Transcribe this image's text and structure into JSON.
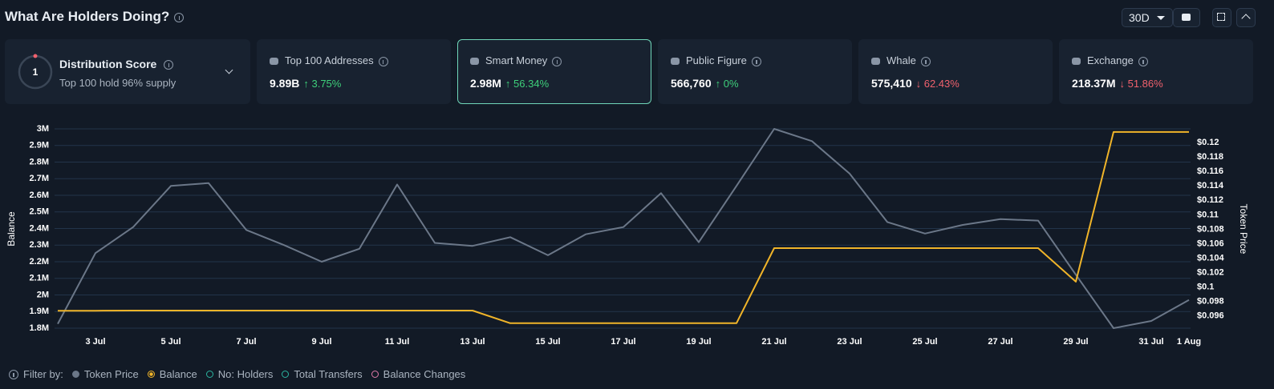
{
  "header": {
    "title": "What Are Holders Doing?",
    "range": "30D"
  },
  "distribution": {
    "title": "Distribution Score",
    "score": "1",
    "subtitle": "Top 100 hold 96% supply"
  },
  "cards": [
    {
      "title": "Top 100 Addresses",
      "value": "9.89B",
      "change": "↑ 3.75%",
      "color": "#3ecf7a"
    },
    {
      "title": "Smart Money",
      "value": "2.98M",
      "change": "↑ 56.34%",
      "color": "#3ecf7a",
      "active": true
    },
    {
      "title": "Public Figure",
      "value": "566,760",
      "change": "↑ 0%",
      "color": "#3ecf7a"
    },
    {
      "title": "Whale",
      "value": "575,410",
      "change": "↓ 62.43%",
      "color": "#f0616d"
    },
    {
      "title": "Exchange",
      "value": "218.37M",
      "change": "↓ 51.86%",
      "color": "#f0616d"
    }
  ],
  "chart_data": {
    "type": "line",
    "ylabel": "Balance",
    "y2label": "Token Price",
    "categories": [
      null,
      "3 Jul",
      null,
      "5 Jul",
      null,
      "7 Jul",
      null,
      "9 Jul",
      null,
      "11 Jul",
      null,
      "13 Jul",
      null,
      "15 Jul",
      null,
      "17 Jul",
      null,
      "19 Jul",
      null,
      "21 Jul",
      null,
      "23 Jul",
      null,
      "25 Jul",
      null,
      "27 Jul",
      null,
      "29 Jul",
      null,
      "31 Jul",
      "1 Aug"
    ],
    "series": [
      {
        "name": "Token Price",
        "color": "#6b7788",
        "axis": "y2",
        "values": [
          0.0949,
          0.1047,
          0.1083,
          0.114,
          0.1144,
          0.1079,
          0.1058,
          0.1035,
          0.1053,
          0.1142,
          0.1061,
          0.1057,
          0.1069,
          0.1044,
          0.1073,
          0.1083,
          0.113,
          0.1062,
          0.114,
          0.1219,
          0.1202,
          0.1157,
          0.109,
          0.1074,
          0.1086,
          0.1094,
          0.1092,
          0.1017,
          0.0943,
          0.0953,
          0.0982
        ]
      },
      {
        "name": "Balance",
        "color": "#f0b429",
        "values": [
          1905000,
          1905000,
          1906000,
          1906000,
          1906000,
          1906000,
          1906000,
          1906000,
          1906000,
          1906000,
          1906000,
          1906000,
          1830000,
          1830000,
          1830000,
          1830000,
          1830000,
          1830000,
          1830000,
          2282000,
          2282000,
          2282000,
          2282000,
          2282000,
          2282000,
          2282000,
          2282000,
          2080000,
          2981000,
          2981000,
          2981000
        ]
      }
    ],
    "ylim": [
      1800000,
      3000000
    ],
    "yticks": [
      {
        "value": 1800000,
        "label": "1.8M"
      },
      {
        "value": 1900000,
        "label": "1.9M"
      },
      {
        "value": 2000000,
        "label": "2M"
      },
      {
        "value": 2100000,
        "label": "2.1M"
      },
      {
        "value": 2200000,
        "label": "2.2M"
      },
      {
        "value": 2300000,
        "label": "2.3M"
      },
      {
        "value": 2400000,
        "label": "2.4M"
      },
      {
        "value": 2500000,
        "label": "2.5M"
      },
      {
        "value": 2600000,
        "label": "2.6M"
      },
      {
        "value": 2700000,
        "label": "2.7M"
      },
      {
        "value": 2800000,
        "label": "2.8M"
      },
      {
        "value": 2900000,
        "label": "2.9M"
      },
      {
        "value": 3000000,
        "label": "3M"
      }
    ],
    "y2lim": [
      0.0943,
      0.1219
    ],
    "y2ticks": [
      {
        "value": 0.096,
        "label": "$0.096"
      },
      {
        "value": 0.098,
        "label": "$0.098"
      },
      {
        "value": 0.1,
        "label": "$0.1"
      },
      {
        "value": 0.102,
        "label": "$0.102"
      },
      {
        "value": 0.104,
        "label": "$0.104"
      },
      {
        "value": 0.106,
        "label": "$0.106"
      },
      {
        "value": 0.108,
        "label": "$0.108"
      },
      {
        "value": 0.11,
        "label": "$0.11"
      },
      {
        "value": 0.112,
        "label": "$0.112"
      },
      {
        "value": 0.114,
        "label": "$0.114"
      },
      {
        "value": 0.116,
        "label": "$0.116"
      },
      {
        "value": 0.118,
        "label": "$0.118"
      },
      {
        "value": 0.12,
        "label": "$0.12"
      }
    ],
    "grid": true
  },
  "filters": {
    "label": "Filter by:",
    "options": [
      {
        "label": "No: Holders",
        "color": "#2bb5a0"
      },
      {
        "label": "Total Transfers",
        "color": "#2bb5a0"
      },
      {
        "label": "Balance Changes",
        "color": "#e07aa8"
      }
    ]
  }
}
